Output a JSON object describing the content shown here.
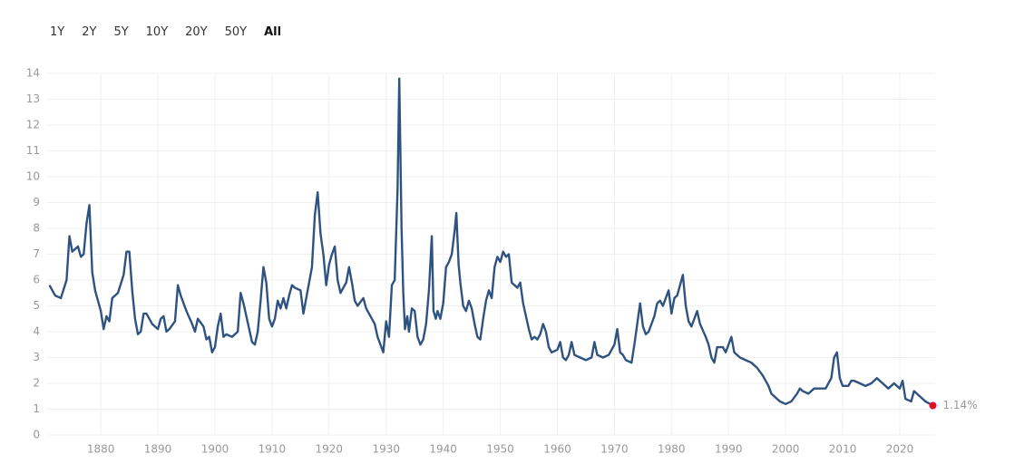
{
  "range_buttons": [
    "1Y",
    "2Y",
    "5Y",
    "10Y",
    "20Y",
    "50Y",
    "All"
  ],
  "active_button": 6,
  "chart_data": {
    "type": "line",
    "xlim": [
      1870.6,
      2026.2
    ],
    "ylim": [
      0,
      14
    ],
    "xticks": [
      1880,
      1890,
      1900,
      1910,
      1920,
      1930,
      1940,
      1950,
      1960,
      1970,
      1980,
      1990,
      2000,
      2010,
      2020
    ],
    "yticks": [
      0,
      1,
      2,
      3,
      4,
      5,
      6,
      7,
      8,
      9,
      10,
      11,
      12,
      13,
      14
    ],
    "grid": true,
    "x": [
      1871,
      1872,
      1873,
      1874,
      1874.5,
      1875,
      1876,
      1876.5,
      1877,
      1877.5,
      1878,
      1878.5,
      1879,
      1879.5,
      1880,
      1880.5,
      1881,
      1881.5,
      1882,
      1883,
      1884,
      1884.5,
      1885,
      1885.5,
      1886,
      1886.5,
      1887,
      1887.5,
      1888,
      1889,
      1890,
      1890.5,
      1891,
      1891.5,
      1892,
      1893,
      1893.5,
      1894,
      1895,
      1896,
      1896.5,
      1897,
      1898,
      1898.5,
      1899,
      1899.5,
      1900,
      1900.5,
      1901,
      1901.5,
      1902,
      1903,
      1904,
      1904.5,
      1905,
      1906,
      1906.5,
      1907,
      1907.5,
      1908,
      1908.5,
      1909,
      1909.5,
      1910,
      1910.5,
      1911,
      1911.5,
      1912,
      1912.5,
      1913,
      1913.5,
      1914,
      1915,
      1915.5,
      1916,
      1917,
      1917.5,
      1918,
      1918.5,
      1919,
      1919.5,
      1920,
      1920.5,
      1921,
      1921.5,
      1922,
      1923,
      1923.5,
      1924,
      1924.5,
      1925,
      1926,
      1926.5,
      1927,
      1928,
      1928.5,
      1929,
      1929.5,
      1930,
      1930.5,
      1931,
      1931.5,
      1932,
      1932.3,
      1932.7,
      1933,
      1933.3,
      1933.7,
      1934,
      1934.5,
      1935,
      1935.5,
      1936,
      1936.5,
      1937,
      1937.5,
      1938,
      1938.3,
      1938.7,
      1939,
      1939.5,
      1940,
      1940.5,
      1941,
      1941.5,
      1942,
      1942.3,
      1942.7,
      1943,
      1943.5,
      1944,
      1944.5,
      1945,
      1945.5,
      1946,
      1946.5,
      1947,
      1947.5,
      1948,
      1948.5,
      1949,
      1949.5,
      1950,
      1950.5,
      1951,
      1951.5,
      1952,
      1952.5,
      1953,
      1953.5,
      1954,
      1954.5,
      1955,
      1955.5,
      1956,
      1956.5,
      1957,
      1957.5,
      1958,
      1958.5,
      1959,
      1960,
      1960.5,
      1961,
      1961.5,
      1962,
      1962.5,
      1963,
      1964,
      1965,
      1966,
      1966.5,
      1967,
      1968,
      1969,
      1970,
      1970.5,
      1971,
      1971.5,
      1972,
      1973,
      1973.5,
      1974,
      1974.5,
      1975,
      1975.5,
      1976,
      1977,
      1977.5,
      1978,
      1978.5,
      1979,
      1979.5,
      1980,
      1980.5,
      1981,
      1981.5,
      1982,
      1982.5,
      1983,
      1983.5,
      1984,
      1984.5,
      1985,
      1986,
      1986.5,
      1987,
      1987.5,
      1988,
      1989,
      1989.5,
      1990,
      1990.5,
      1991,
      1992,
      1993,
      1994,
      1995,
      1996,
      1997,
      1997.5,
      1998,
      1998.5,
      1999,
      2000,
      2001,
      2002,
      2002.5,
      2003,
      2004,
      2005,
      2006,
      2007,
      2008,
      2008.5,
      2009,
      2009.5,
      2010,
      2011,
      2011.5,
      2012,
      2013,
      2014,
      2015,
      2016,
      2017,
      2018,
      2019,
      2020,
      2020.5,
      2021,
      2022,
      2022.5,
      2023,
      2024,
      2024.5,
      2025.8
    ],
    "series": [
      {
        "color": "#2f5381",
        "dot_color": "#e0102a",
        "values": [
          5.8,
          5.4,
          5.3,
          6.0,
          7.7,
          7.1,
          7.3,
          6.9,
          7.0,
          8.2,
          8.9,
          6.3,
          5.6,
          5.2,
          4.8,
          4.1,
          4.6,
          4.4,
          5.3,
          5.5,
          6.2,
          7.1,
          7.1,
          5.6,
          4.5,
          3.9,
          4.0,
          4.7,
          4.7,
          4.3,
          4.1,
          4.5,
          4.6,
          4.0,
          4.1,
          4.4,
          5.8,
          5.4,
          4.8,
          4.3,
          4.0,
          4.5,
          4.2,
          3.7,
          3.8,
          3.2,
          3.4,
          4.2,
          4.7,
          3.8,
          3.9,
          3.8,
          4.0,
          5.5,
          5.1,
          4.1,
          3.6,
          3.5,
          4.0,
          5.2,
          6.5,
          5.9,
          4.5,
          4.2,
          4.5,
          5.2,
          4.9,
          5.3,
          4.9,
          5.4,
          5.8,
          5.7,
          5.6,
          4.7,
          5.3,
          6.5,
          8.5,
          9.4,
          7.8,
          7.0,
          5.8,
          6.6,
          7.0,
          7.3,
          6.0,
          5.5,
          5.9,
          6.5,
          5.9,
          5.2,
          5.0,
          5.3,
          4.9,
          4.7,
          4.3,
          3.8,
          3.5,
          3.2,
          4.4,
          3.8,
          5.8,
          6.0,
          9.5,
          13.8,
          8.0,
          5.5,
          4.1,
          4.6,
          4.0,
          4.9,
          4.8,
          3.8,
          3.5,
          3.7,
          4.3,
          5.6,
          7.7,
          4.8,
          4.5,
          4.8,
          4.5,
          5.1,
          6.5,
          6.7,
          7.0,
          7.9,
          8.6,
          6.6,
          5.9,
          5.0,
          4.8,
          5.2,
          4.9,
          4.3,
          3.8,
          3.7,
          4.5,
          5.2,
          5.6,
          5.3,
          6.5,
          6.9,
          6.7,
          7.1,
          6.9,
          7.0,
          5.9,
          5.8,
          5.7,
          5.9,
          5.1,
          4.6,
          4.1,
          3.7,
          3.8,
          3.7,
          3.9,
          4.3,
          4.0,
          3.4,
          3.2,
          3.3,
          3.6,
          3.0,
          2.9,
          3.1,
          3.6,
          3.1,
          3.0,
          2.9,
          3.0,
          3.6,
          3.1,
          3.0,
          3.1,
          3.5,
          4.1,
          3.2,
          3.1,
          2.9,
          2.8,
          3.5,
          4.3,
          5.1,
          4.2,
          3.9,
          4.0,
          4.6,
          5.1,
          5.2,
          5.0,
          5.3,
          5.6,
          4.7,
          5.3,
          5.4,
          5.8,
          6.2,
          5.0,
          4.4,
          4.2,
          4.5,
          4.8,
          4.3,
          3.8,
          3.5,
          3.0,
          2.8,
          3.4,
          3.4,
          3.2,
          3.5,
          3.8,
          3.2,
          3.0,
          2.9,
          2.8,
          2.6,
          2.3,
          1.9,
          1.6,
          1.5,
          1.4,
          1.3,
          1.2,
          1.3,
          1.6,
          1.8,
          1.7,
          1.6,
          1.8,
          1.8,
          1.8,
          2.2,
          3.0,
          3.2,
          2.2,
          1.9,
          1.9,
          2.1,
          2.1,
          2.0,
          1.9,
          2.0,
          2.2,
          2.0,
          1.8,
          2.0,
          1.8,
          2.1,
          1.4,
          1.3,
          1.7,
          1.6,
          1.4,
          1.3,
          1.14
        ],
        "value_labels": [
          null,
          null,
          null,
          null,
          null,
          null,
          null,
          null,
          null,
          null,
          null,
          null,
          null,
          null,
          null,
          null,
          null,
          null,
          null,
          null,
          null,
          null,
          null,
          null,
          null,
          null,
          null,
          null,
          null,
          null,
          null,
          null,
          null,
          null,
          null,
          null,
          null,
          null,
          null,
          null,
          null,
          null,
          null,
          null,
          null,
          null,
          null,
          null,
          null,
          null,
          null,
          null,
          null,
          null,
          null,
          null,
          null,
          null,
          null,
          null,
          null,
          null,
          null,
          null,
          null,
          null,
          null,
          null,
          null,
          null,
          null,
          null,
          null,
          null,
          null,
          null,
          null,
          null,
          null,
          null,
          null,
          null,
          null,
          null,
          null,
          null,
          null,
          null,
          null,
          null,
          null,
          null,
          null,
          null,
          null,
          null,
          null,
          null,
          null,
          null,
          null,
          null,
          null,
          null,
          null,
          null,
          null,
          null,
          null,
          null,
          null,
          null,
          null,
          null,
          null,
          null,
          null,
          null,
          null,
          null,
          null,
          null,
          null,
          null,
          null,
          null,
          null,
          null,
          null,
          null,
          null,
          null,
          null,
          null,
          null,
          null,
          null,
          null,
          null,
          null,
          null,
          null,
          null,
          null,
          null,
          null,
          null,
          null,
          null,
          null,
          null,
          null,
          null,
          null,
          null,
          null,
          null,
          null,
          null,
          null,
          null,
          null,
          null,
          null,
          null,
          null,
          null,
          null,
          null,
          null,
          null,
          null,
          null,
          null,
          null,
          null,
          null,
          null,
          null,
          null,
          null,
          null,
          null,
          null,
          null,
          null,
          null,
          null,
          null,
          null,
          null,
          null,
          null,
          null,
          null,
          null,
          null,
          null,
          null,
          null,
          null,
          null,
          null,
          null,
          null,
          null,
          null,
          null,
          null,
          null,
          null,
          null,
          null,
          null,
          null,
          null,
          null,
          null,
          null,
          null,
          null,
          null,
          null,
          null,
          null,
          null,
          null,
          null,
          null,
          null,
          null,
          null,
          null,
          null,
          null,
          null,
          null,
          null,
          null,
          null,
          null,
          null,
          null,
          null,
          null,
          null,
          null,
          null,
          null,
          null,
          null,
          null,
          null,
          null,
          null,
          null,
          "1.14%"
        ]
      }
    ]
  }
}
